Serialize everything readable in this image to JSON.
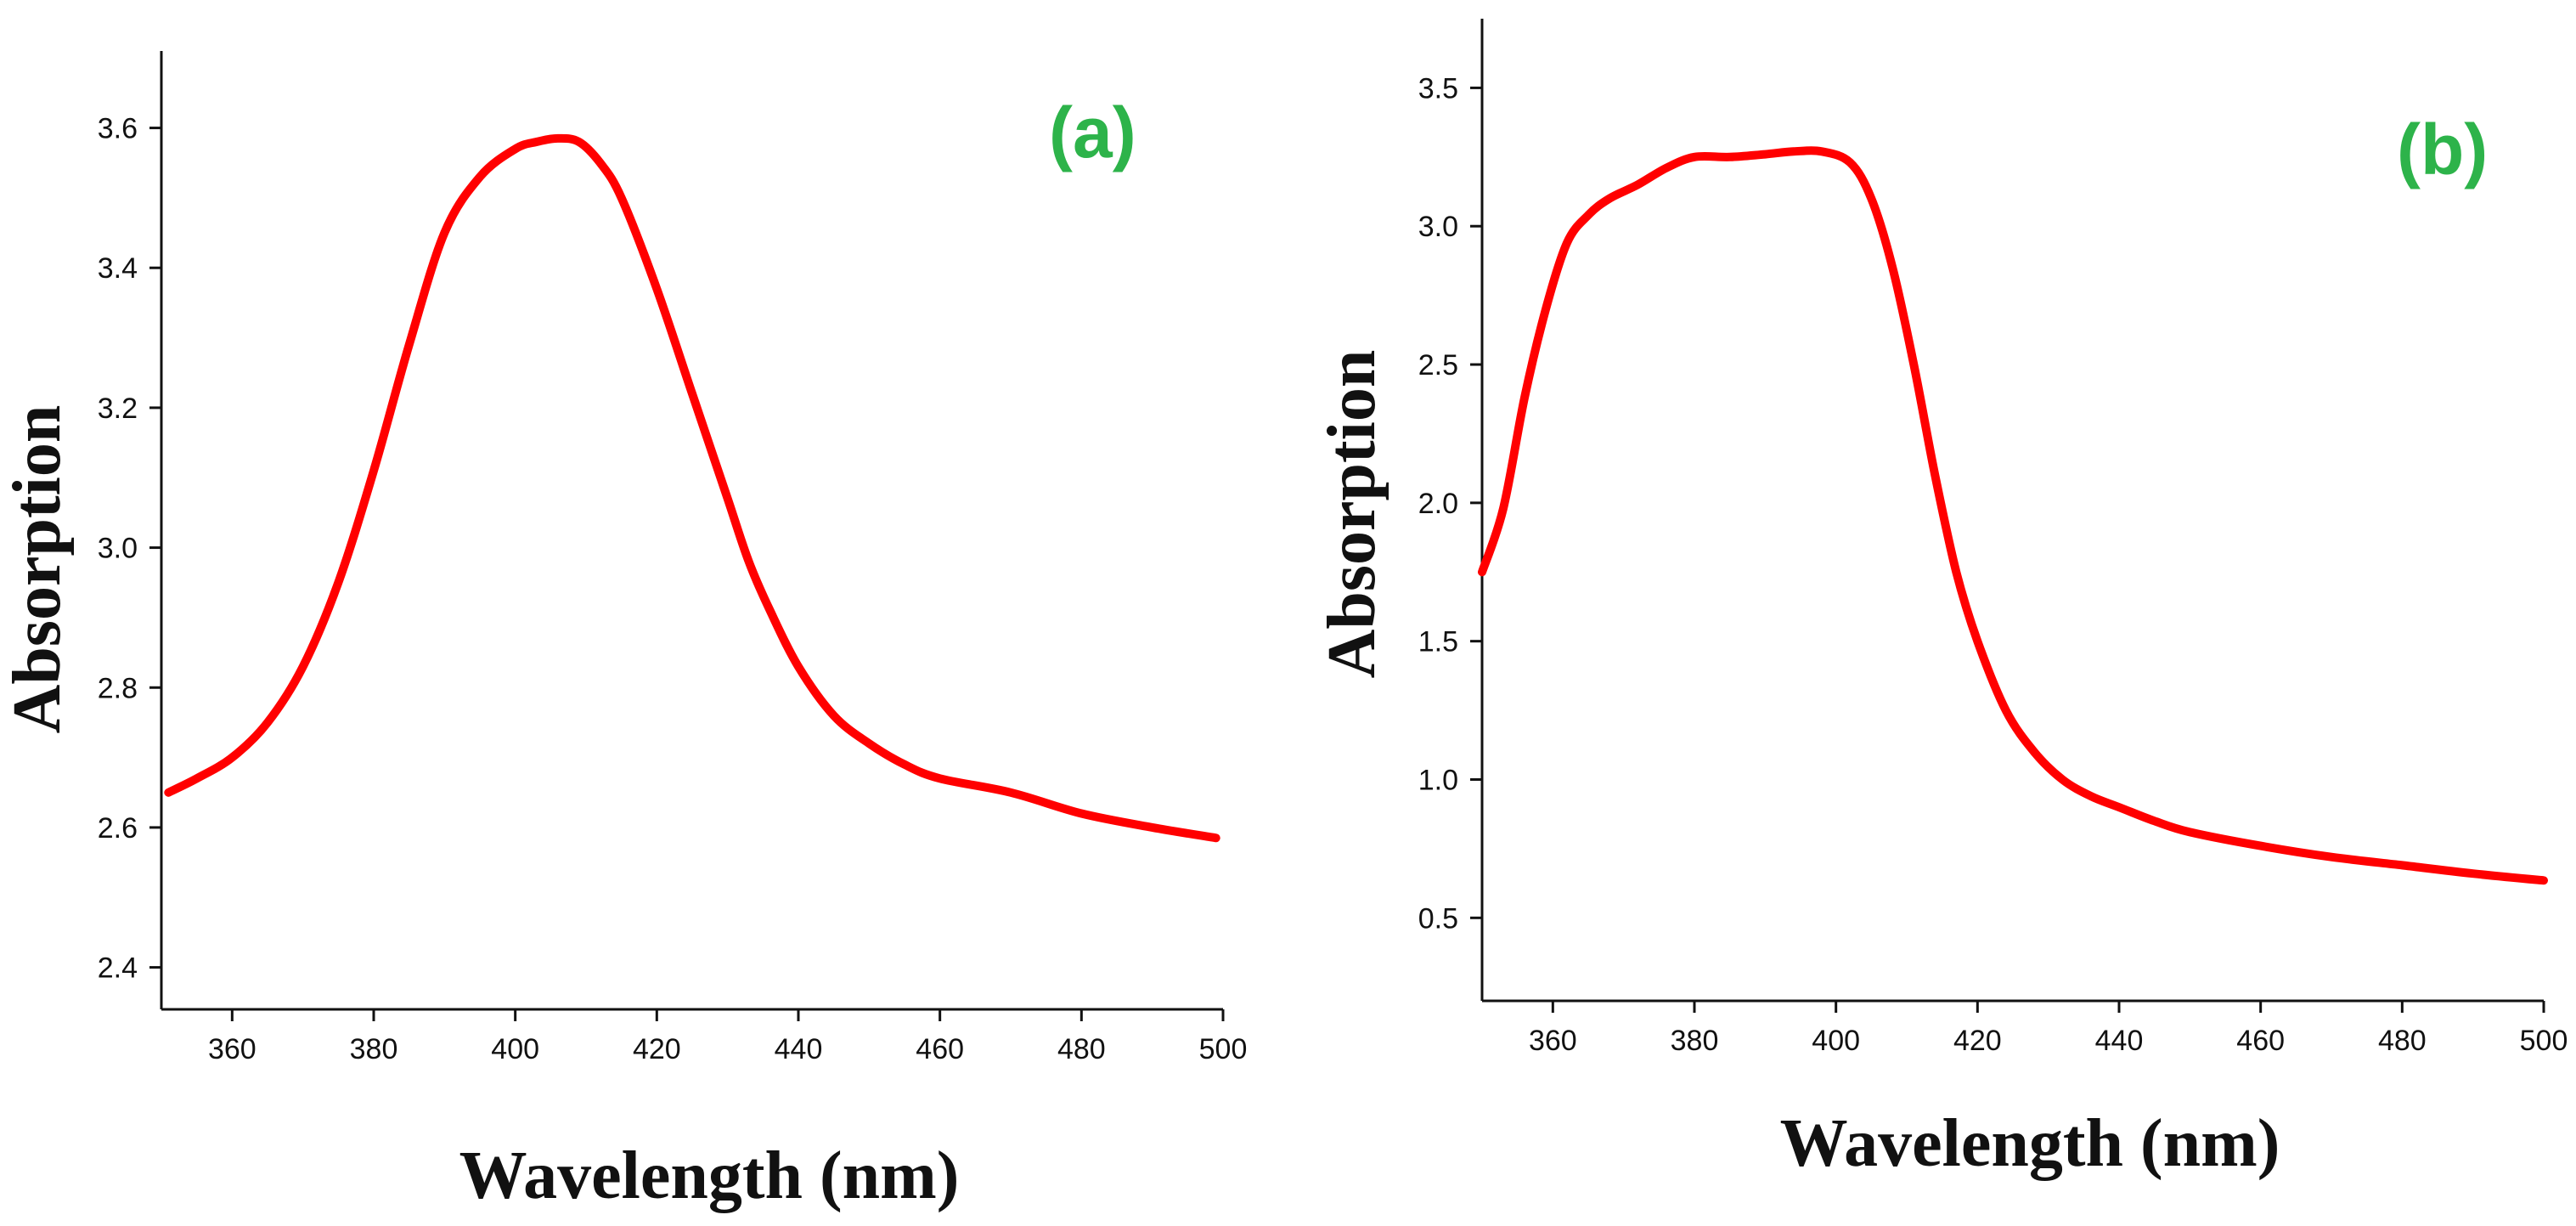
{
  "colors": {
    "series": "#ff0000",
    "panel_label": "#2db34a",
    "axis": "#111111"
  },
  "chart_data": [
    {
      "type": "line",
      "panel_label": "(a)",
      "xlabel": "Wavelength (nm)",
      "ylabel": "Absorption",
      "xlim": [
        350,
        500
      ],
      "ylim": [
        2.34,
        3.71
      ],
      "xticks": [
        360,
        380,
        400,
        420,
        440,
        460,
        480,
        500
      ],
      "xtick_labels": [
        "360",
        "380",
        "400",
        "420",
        "440",
        "460",
        "480",
        "500"
      ],
      "yticks": [
        2.4,
        2.6,
        2.8,
        3.0,
        3.2,
        3.4,
        3.6
      ],
      "ytick_labels": [
        "2.4",
        "2.6",
        "2.8",
        "3.0",
        "3.2",
        "3.4",
        "3.6"
      ],
      "grid": false,
      "series": [
        {
          "name": "Absorption",
          "x": [
            351,
            355,
            360,
            365,
            370,
            375,
            380,
            385,
            390,
            395,
            400,
            403,
            406,
            409,
            412,
            415,
            420,
            425,
            430,
            433,
            436,
            440,
            445,
            450,
            455,
            460,
            470,
            480,
            490,
            499
          ],
          "y": [
            2.65,
            2.67,
            2.7,
            2.75,
            2.83,
            2.95,
            3.11,
            3.29,
            3.45,
            3.53,
            3.57,
            3.58,
            3.585,
            3.58,
            3.55,
            3.5,
            3.37,
            3.22,
            3.07,
            2.98,
            2.91,
            2.83,
            2.76,
            2.72,
            2.69,
            2.67,
            2.65,
            2.62,
            2.6,
            2.585
          ]
        }
      ]
    },
    {
      "type": "line",
      "panel_label": "(b)",
      "xlabel": "Wavelength (nm)",
      "ylabel": "Absorption",
      "xlim": [
        350,
        500
      ],
      "ylim": [
        0.2,
        3.75
      ],
      "xticks": [
        360,
        380,
        400,
        420,
        440,
        460,
        480,
        500
      ],
      "xtick_labels": [
        "360",
        "380",
        "400",
        "420",
        "440",
        "460",
        "480",
        "500"
      ],
      "yticks": [
        0.5,
        1.0,
        1.5,
        2.0,
        2.5,
        3.0,
        3.5
      ],
      "ytick_labels": [
        "0.5",
        "1.0",
        "1.5",
        "2.0",
        "2.5",
        "3.0",
        "3.5"
      ],
      "grid": false,
      "series": [
        {
          "name": "Absorption",
          "x": [
            350,
            353,
            356,
            359,
            362,
            365,
            368,
            372,
            376,
            380,
            385,
            390,
            394,
            398,
            402,
            405,
            408,
            411,
            414,
            417,
            420,
            424,
            428,
            432,
            436,
            440,
            445,
            450,
            460,
            470,
            480,
            490,
            500
          ],
          "y": [
            1.75,
            1.98,
            2.38,
            2.7,
            2.94,
            3.04,
            3.1,
            3.15,
            3.21,
            3.25,
            3.25,
            3.26,
            3.27,
            3.27,
            3.23,
            3.1,
            2.85,
            2.5,
            2.1,
            1.75,
            1.5,
            1.25,
            1.1,
            1.0,
            0.94,
            0.9,
            0.85,
            0.81,
            0.76,
            0.72,
            0.69,
            0.66,
            0.635
          ]
        }
      ]
    }
  ]
}
